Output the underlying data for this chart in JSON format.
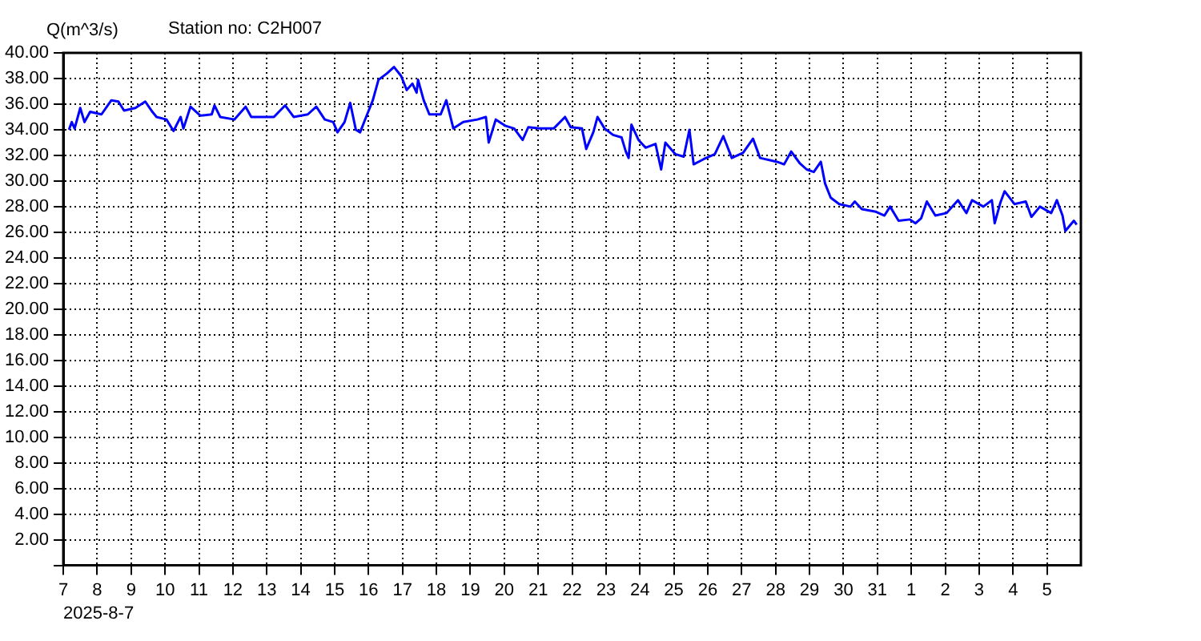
{
  "chart_data": {
    "type": "line",
    "title": "Station no: C2H007",
    "ylabel": "Q(m^3/s)",
    "annotations": [
      "2025-8-7"
    ],
    "xlim": [
      "2025-08-07",
      "2025-09-06"
    ],
    "xticks": [
      {
        "value": "2025-08-07",
        "label": "7"
      },
      {
        "value": "2025-08-08",
        "label": "8"
      },
      {
        "value": "2025-08-09",
        "label": "9"
      },
      {
        "value": "2025-08-10",
        "label": "10"
      },
      {
        "value": "2025-08-11",
        "label": "11"
      },
      {
        "value": "2025-08-12",
        "label": "12"
      },
      {
        "value": "2025-08-13",
        "label": "13"
      },
      {
        "value": "2025-08-14",
        "label": "14"
      },
      {
        "value": "2025-08-15",
        "label": "15"
      },
      {
        "value": "2025-08-16",
        "label": "16"
      },
      {
        "value": "2025-08-17",
        "label": "17"
      },
      {
        "value": "2025-08-18",
        "label": "18"
      },
      {
        "value": "2025-08-19",
        "label": "19"
      },
      {
        "value": "2025-08-20",
        "label": "20"
      },
      {
        "value": "2025-08-21",
        "label": "21"
      },
      {
        "value": "2025-08-22",
        "label": "22"
      },
      {
        "value": "2025-08-23",
        "label": "23"
      },
      {
        "value": "2025-08-24",
        "label": "24"
      },
      {
        "value": "2025-08-25",
        "label": "25"
      },
      {
        "value": "2025-08-26",
        "label": "26"
      },
      {
        "value": "2025-08-27",
        "label": "27"
      },
      {
        "value": "2025-08-28",
        "label": "28"
      },
      {
        "value": "2025-08-29",
        "label": "29"
      },
      {
        "value": "2025-08-30",
        "label": "30"
      },
      {
        "value": "2025-08-31",
        "label": "31"
      },
      {
        "value": "2025-09-01",
        "label": "1"
      },
      {
        "value": "2025-09-02",
        "label": "2"
      },
      {
        "value": "2025-09-03",
        "label": "3"
      },
      {
        "value": "2025-09-04",
        "label": "4"
      },
      {
        "value": "2025-09-05",
        "label": "5"
      }
    ],
    "ylim": [
      0,
      40
    ],
    "yticks": [
      {
        "value": 0,
        "label": null
      },
      {
        "value": 2,
        "label": "2.00"
      },
      {
        "value": 4,
        "label": "4.00"
      },
      {
        "value": 6,
        "label": "6.00"
      },
      {
        "value": 8,
        "label": "8.00"
      },
      {
        "value": 10,
        "label": "10.00"
      },
      {
        "value": 12,
        "label": "12.00"
      },
      {
        "value": 14,
        "label": "14.00"
      },
      {
        "value": 16,
        "label": "16.00"
      },
      {
        "value": 18,
        "label": "18.00"
      },
      {
        "value": 20,
        "label": "20.00"
      },
      {
        "value": 22,
        "label": "22.00"
      },
      {
        "value": 24,
        "label": "24.00"
      },
      {
        "value": 26,
        "label": "26.00"
      },
      {
        "value": 28,
        "label": "28.00"
      },
      {
        "value": 30,
        "label": "30.00"
      },
      {
        "value": 32,
        "label": "32.00"
      },
      {
        "value": 34,
        "label": "34.00"
      },
      {
        "value": 36,
        "label": "36.00"
      },
      {
        "value": 38,
        "label": "38.00"
      },
      {
        "value": 40,
        "label": "40.00"
      }
    ],
    "grid": true,
    "legend": false,
    "marker": "none",
    "x": [
      "2025-08-07T04:00",
      "2025-08-07T06:00",
      "2025-08-07T08:00",
      "2025-08-07T12:00",
      "2025-08-07T15:00",
      "2025-08-07T19:00",
      "2025-08-08T03:00",
      "2025-08-08T10:00",
      "2025-08-08T15:00",
      "2025-08-08T19:00",
      "2025-08-09T03:00",
      "2025-08-09T10:00",
      "2025-08-09T15:00",
      "2025-08-09T18:00",
      "2025-08-10T01:00",
      "2025-08-10T06:00",
      "2025-08-10T11:00",
      "2025-08-10T13:00",
      "2025-08-10T18:00",
      "2025-08-11T01:00",
      "2025-08-11T09:00",
      "2025-08-11T11:00",
      "2025-08-11T15:00",
      "2025-08-12T01:00",
      "2025-08-12T09:00",
      "2025-08-12T13:00",
      "2025-08-12T21:00",
      "2025-08-13T05:00",
      "2025-08-13T13:00",
      "2025-08-13T19:00",
      "2025-08-14T05:00",
      "2025-08-14T11:00",
      "2025-08-14T17:00",
      "2025-08-14T23:00",
      "2025-08-15T02:00",
      "2025-08-15T07:00",
      "2025-08-15T11:00",
      "2025-08-15T15:00",
      "2025-08-15T18:00",
      "2025-08-15T23:00",
      "2025-08-16T03:00",
      "2025-08-16T07:00",
      "2025-08-16T13:00",
      "2025-08-16T18:00",
      "2025-08-16T23:00",
      "2025-08-17T03:00",
      "2025-08-17T07:00",
      "2025-08-17T10:00",
      "2025-08-17T11:00",
      "2025-08-17T15:00",
      "2025-08-17T19:00",
      "2025-08-18T03:00",
      "2025-08-18T07:00",
      "2025-08-18T12:00",
      "2025-08-18T19:00",
      "2025-08-19T05:00",
      "2025-08-19T11:00",
      "2025-08-19T13:00",
      "2025-08-19T18:00",
      "2025-08-20T01:00",
      "2025-08-20T07:00",
      "2025-08-20T13:00",
      "2025-08-20T17:00",
      "2025-08-21T01:00",
      "2025-08-21T11:00",
      "2025-08-21T19:00",
      "2025-08-21T23:00",
      "2025-08-22T07:00",
      "2025-08-22T10:00",
      "2025-08-22T15:00",
      "2025-08-22T18:00",
      "2025-08-22T23:00",
      "2025-08-23T05:00",
      "2025-08-23T11:00",
      "2025-08-23T14:00",
      "2025-08-23T16:00",
      "2025-08-23T18:00",
      "2025-08-23T23:00",
      "2025-08-24T04:00",
      "2025-08-24T11:00",
      "2025-08-24T15:00",
      "2025-08-24T18:00",
      "2025-08-25T01:00",
      "2025-08-25T07:00",
      "2025-08-25T11:00",
      "2025-08-25T14:00",
      "2025-08-25T21:00",
      "2025-08-26T05:00",
      "2025-08-26T11:00",
      "2025-08-26T17:00",
      "2025-08-27T01:00",
      "2025-08-27T08:00",
      "2025-08-27T13:00",
      "2025-08-28T01:00",
      "2025-08-28T06:00",
      "2025-08-28T11:00",
      "2025-08-28T17:00",
      "2025-08-28T22:00",
      "2025-08-29T03:00",
      "2025-08-29T08:00",
      "2025-08-29T11:00",
      "2025-08-29T15:00",
      "2025-08-29T21:00",
      "2025-08-30T05:00",
      "2025-08-30T08:00",
      "2025-08-30T13:00",
      "2025-08-30T23:00",
      "2025-08-31T05:00",
      "2025-08-31T09:00",
      "2025-08-31T15:00",
      "2025-08-31T23:00",
      "2025-09-01T03:00",
      "2025-09-01T07:00",
      "2025-09-01T11:00",
      "2025-09-01T17:00",
      "2025-09-02T01:00",
      "2025-09-02T09:00",
      "2025-09-02T15:00",
      "2025-09-02T19:00",
      "2025-09-03T03:00",
      "2025-09-03T09:00",
      "2025-09-03T11:00",
      "2025-09-03T15:00",
      "2025-09-03T18:00",
      "2025-09-04T01:00",
      "2025-09-04T09:00",
      "2025-09-04T13:00",
      "2025-09-04T19:00",
      "2025-09-05T03:00",
      "2025-09-05T07:00",
      "2025-09-05T11:00",
      "2025-09-05T13:00",
      "2025-09-05T19:00",
      "2025-09-05T21:00"
    ],
    "series": [
      {
        "color": "#0000ff",
        "values": [
          34.0,
          34.6,
          34.1,
          35.7,
          34.6,
          35.4,
          35.2,
          36.3,
          36.2,
          35.5,
          35.7,
          36.2,
          35.4,
          35.0,
          34.8,
          33.9,
          35.0,
          34.1,
          35.8,
          35.1,
          35.2,
          35.9,
          35.0,
          34.8,
          35.8,
          35.0,
          35.0,
          35.0,
          35.9,
          35.0,
          35.2,
          35.8,
          34.8,
          34.6,
          33.8,
          34.6,
          36.1,
          34.0,
          33.8,
          35.2,
          36.3,
          37.9,
          38.4,
          38.9,
          38.2,
          37.1,
          37.6,
          36.9,
          37.9,
          36.3,
          35.2,
          35.2,
          36.3,
          34.1,
          34.6,
          34.8,
          35.0,
          33.0,
          34.8,
          34.3,
          34.1,
          33.2,
          34.2,
          34.1,
          34.1,
          35.0,
          34.2,
          34.1,
          32.5,
          33.8,
          35.0,
          34.1,
          33.6,
          33.4,
          32.3,
          31.8,
          34.4,
          33.2,
          32.6,
          32.9,
          30.9,
          33.0,
          32.1,
          31.9,
          34.0,
          31.3,
          31.7,
          32.1,
          33.5,
          31.8,
          32.2,
          33.3,
          31.8,
          31.5,
          31.3,
          32.3,
          31.4,
          30.9,
          30.7,
          31.5,
          29.8,
          28.7,
          28.2,
          28.0,
          28.4,
          27.8,
          27.6,
          27.3,
          28.0,
          26.9,
          27.0,
          26.7,
          27.1,
          28.4,
          27.3,
          27.5,
          28.5,
          27.5,
          28.5,
          28.0,
          28.5,
          26.7,
          28.3,
          29.2,
          28.2,
          28.4,
          27.2,
          28.0,
          27.5,
          28.5,
          27.3,
          26.1,
          26.9,
          26.6
        ]
      }
    ]
  }
}
